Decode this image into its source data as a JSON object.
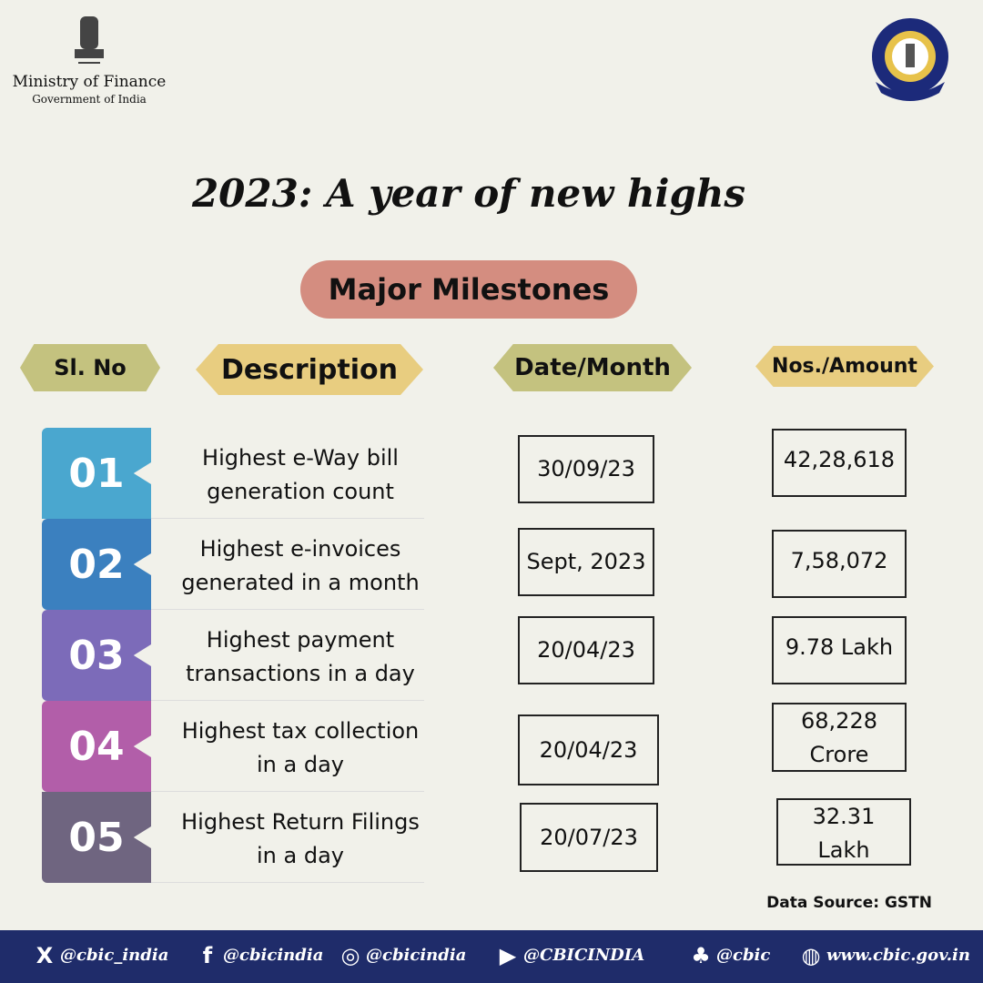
{
  "header": {
    "ministry": "Ministry of Finance",
    "government": "Government of India"
  },
  "title": "2023: A year of new highs",
  "subtitle": "Major Milestones",
  "table": {
    "columns": [
      "Sl. No",
      "Description",
      "Date/Month",
      "Nos./Amount"
    ],
    "rows": [
      {
        "no": "01",
        "description": [
          "Highest e-Way bill",
          "generation count"
        ],
        "date": "30/09/23",
        "amount": [
          "42,28,618"
        ]
      },
      {
        "no": "02",
        "description": [
          "Highest e-invoices",
          "generated in a month"
        ],
        "date": "Sept, 2023",
        "amount": [
          "7,58,072"
        ]
      },
      {
        "no": "03",
        "description": [
          "Highest payment",
          "transactions in a day"
        ],
        "date": "20/04/23",
        "amount": [
          "9.78 Lakh"
        ]
      },
      {
        "no": "04",
        "description": [
          "Highest tax collection",
          "in a day"
        ],
        "date": "20/04/23",
        "amount": [
          "68,228",
          "Crore"
        ]
      },
      {
        "no": "05",
        "description": [
          "Highest Return Filings",
          "in a day"
        ],
        "date": "20/07/23",
        "amount": [
          "32.31",
          "Lakh"
        ]
      }
    ]
  },
  "source": "Data Source: GSTN",
  "footer": [
    "@cbic_india",
    "@cbicindia",
    "@cbicindia",
    "@CBICINDIA",
    "@cbic",
    "www.cbic.gov.in"
  ]
}
